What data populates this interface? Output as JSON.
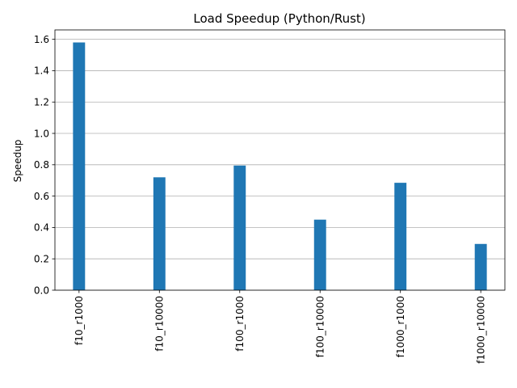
{
  "chart_data": {
    "type": "bar",
    "title": "Load Speedup (Python/Rust)",
    "xlabel": "",
    "ylabel": "Speedup",
    "categories": [
      "f10_r1000",
      "f10_r10000",
      "f100_r1000",
      "f100_r10000",
      "f1000_r1000",
      "f1000_r10000"
    ],
    "values": [
      1.58,
      0.72,
      0.795,
      0.45,
      0.685,
      0.295
    ],
    "ylim": [
      0,
      1.66
    ],
    "yticks": [
      "0.0",
      "0.2",
      "0.4",
      "0.6",
      "0.8",
      "1.0",
      "1.2",
      "1.4",
      "1.6"
    ],
    "grid": "y-axis",
    "legend": "none",
    "colors": {
      "bar": "#1f77b4",
      "grid": "#b0b0b0",
      "axis": "#000000"
    }
  }
}
